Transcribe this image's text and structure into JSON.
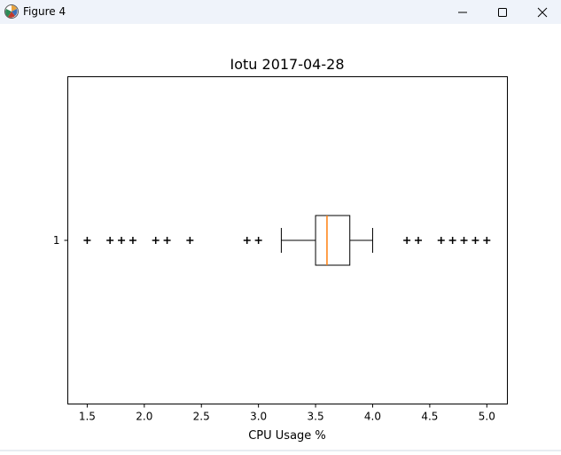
{
  "window": {
    "title": "Figure 4",
    "icon": "matplotlib-figure-icon",
    "controls": [
      "minimize-icon",
      "maximize-icon",
      "close-icon"
    ]
  },
  "chart_data": {
    "type": "boxplot",
    "orientation": "horizontal",
    "title": "Iotu 2017-04-28",
    "xlabel": "CPU Usage %",
    "ylabel": "",
    "xlim": [
      1.33,
      5.18
    ],
    "x_ticks": [
      1.5,
      2.0,
      2.5,
      3.0,
      3.5,
      4.0,
      4.5,
      5.0
    ],
    "x_tick_labels": [
      "1.5",
      "2.0",
      "2.5",
      "3.0",
      "3.5",
      "4.0",
      "4.5",
      "5.0"
    ],
    "y_tick_labels": [
      "1"
    ],
    "grid": false,
    "series": [
      {
        "category": "1",
        "q1": 3.5,
        "median": 3.6,
        "q3": 3.8,
        "whisker_low": 3.2,
        "whisker_high": 4.0,
        "outliers": [
          1.5,
          1.7,
          1.8,
          1.9,
          2.1,
          2.2,
          2.4,
          2.9,
          3.0,
          4.3,
          4.4,
          4.6,
          4.7,
          4.8,
          4.9,
          5.0
        ]
      }
    ],
    "colors": {
      "box": "#000000",
      "median": "#ff7f0e",
      "outlier_marker": "#000000"
    },
    "outlier_marker": "plus"
  }
}
